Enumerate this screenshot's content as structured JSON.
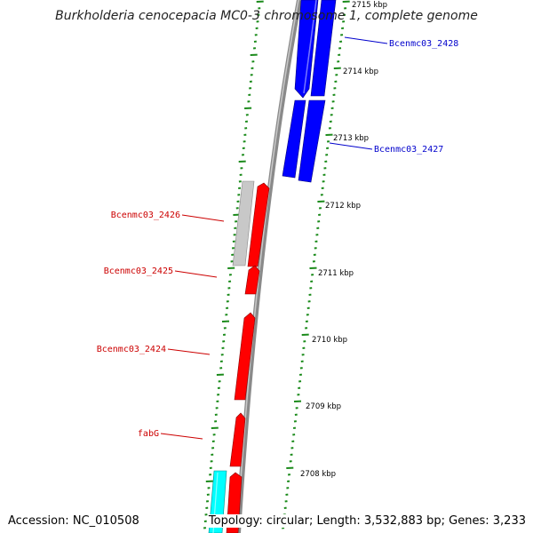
{
  "title": "Burkholderia cenocepacia MC0-3 chromosome 1, complete genome",
  "accession": "Accession: NC_010508",
  "summary": "Topology: circular; Length: 3,532,883 bp; Genes: 3,233",
  "scale_labels": [
    "2715 kbp",
    "2714 kbp",
    "2713 kbp",
    "2712 kbp",
    "2711 kbp",
    "2710 kbp",
    "2709 kbp",
    "2708 kbp"
  ],
  "genes": [
    {
      "label": "Bcenmc03_2428",
      "color": "#0000cc"
    },
    {
      "label": "Bcenmc03_2427",
      "color": "#0000cc"
    },
    {
      "label": "Bcenmc03_2426",
      "color": "#cc0000"
    },
    {
      "label": "Bcenmc03_2425",
      "color": "#cc0000"
    },
    {
      "label": "Bcenmc03_2424",
      "color": "#cc0000"
    },
    {
      "label": "fabG",
      "color": "#cc0000"
    }
  ],
  "colors": {
    "forward_gene": "#ff0000",
    "reverse_gene": "#0000ff",
    "pseudo_gene": "#c8c8c8",
    "rna_gene": "#00ffff",
    "backbone": "#8a8a8a",
    "ticks": "#1a8a1a"
  }
}
